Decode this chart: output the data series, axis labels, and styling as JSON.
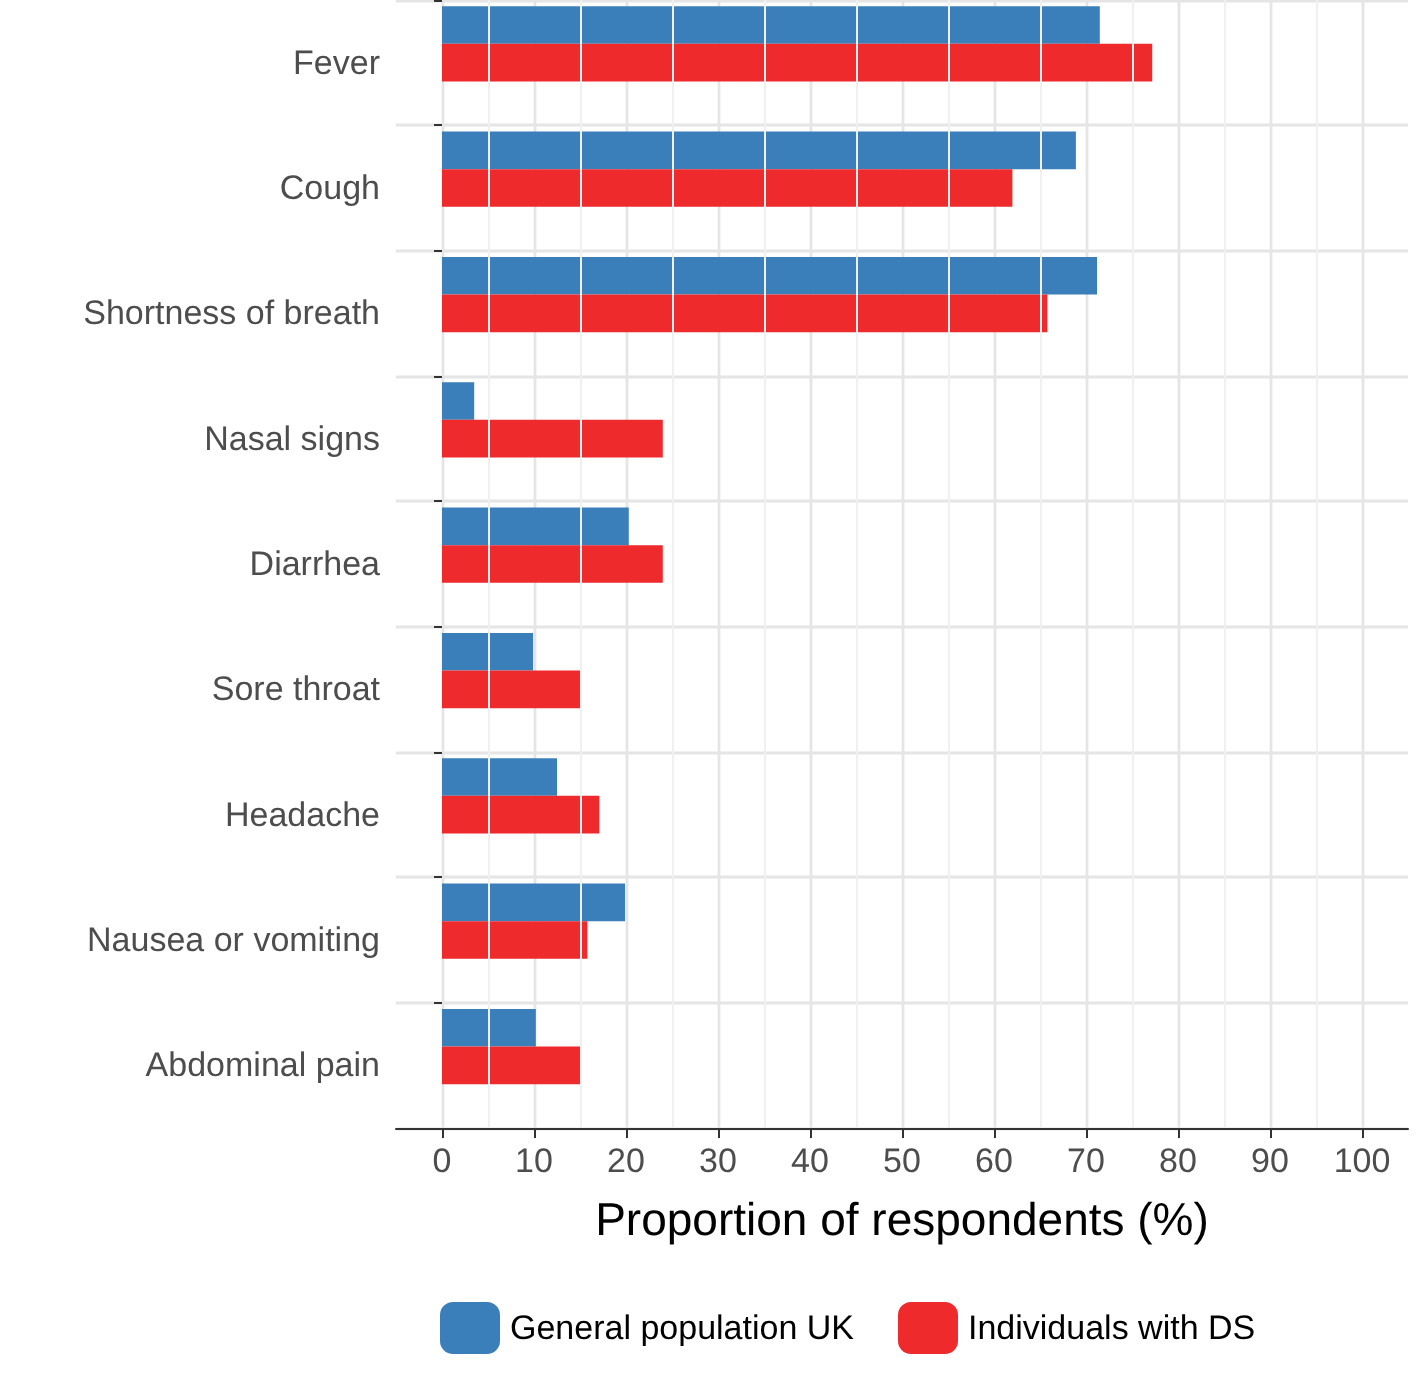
{
  "chart_data": {
    "type": "bar",
    "orientation": "horizontal",
    "xlabel": "Proportion of respondents (%)",
    "categories": [
      "Fever",
      "Cough",
      "Shortness of breath",
      "Nasal signs",
      "Diarrhea",
      "Sore throat",
      "Headache",
      "Nausea or vomiting",
      "Abdominal pain"
    ],
    "series": [
      {
        "name": "General population UK",
        "color": "#3a7fb9",
        "values": [
          71.5,
          68.9,
          71.2,
          3.5,
          20.3,
          9.9,
          12.5,
          19.9,
          10.2
        ]
      },
      {
        "name": "Individuals with DS",
        "color": "#ee2a2c",
        "values": [
          77.2,
          62.0,
          65.8,
          24.0,
          24.0,
          15.2,
          17.1,
          15.8,
          15.2
        ]
      }
    ],
    "xlim": [
      -5,
      105
    ],
    "xticks": [
      0,
      10,
      20,
      30,
      40,
      50,
      60,
      70,
      80,
      90,
      100
    ],
    "grid": true,
    "legend": "bottom"
  }
}
